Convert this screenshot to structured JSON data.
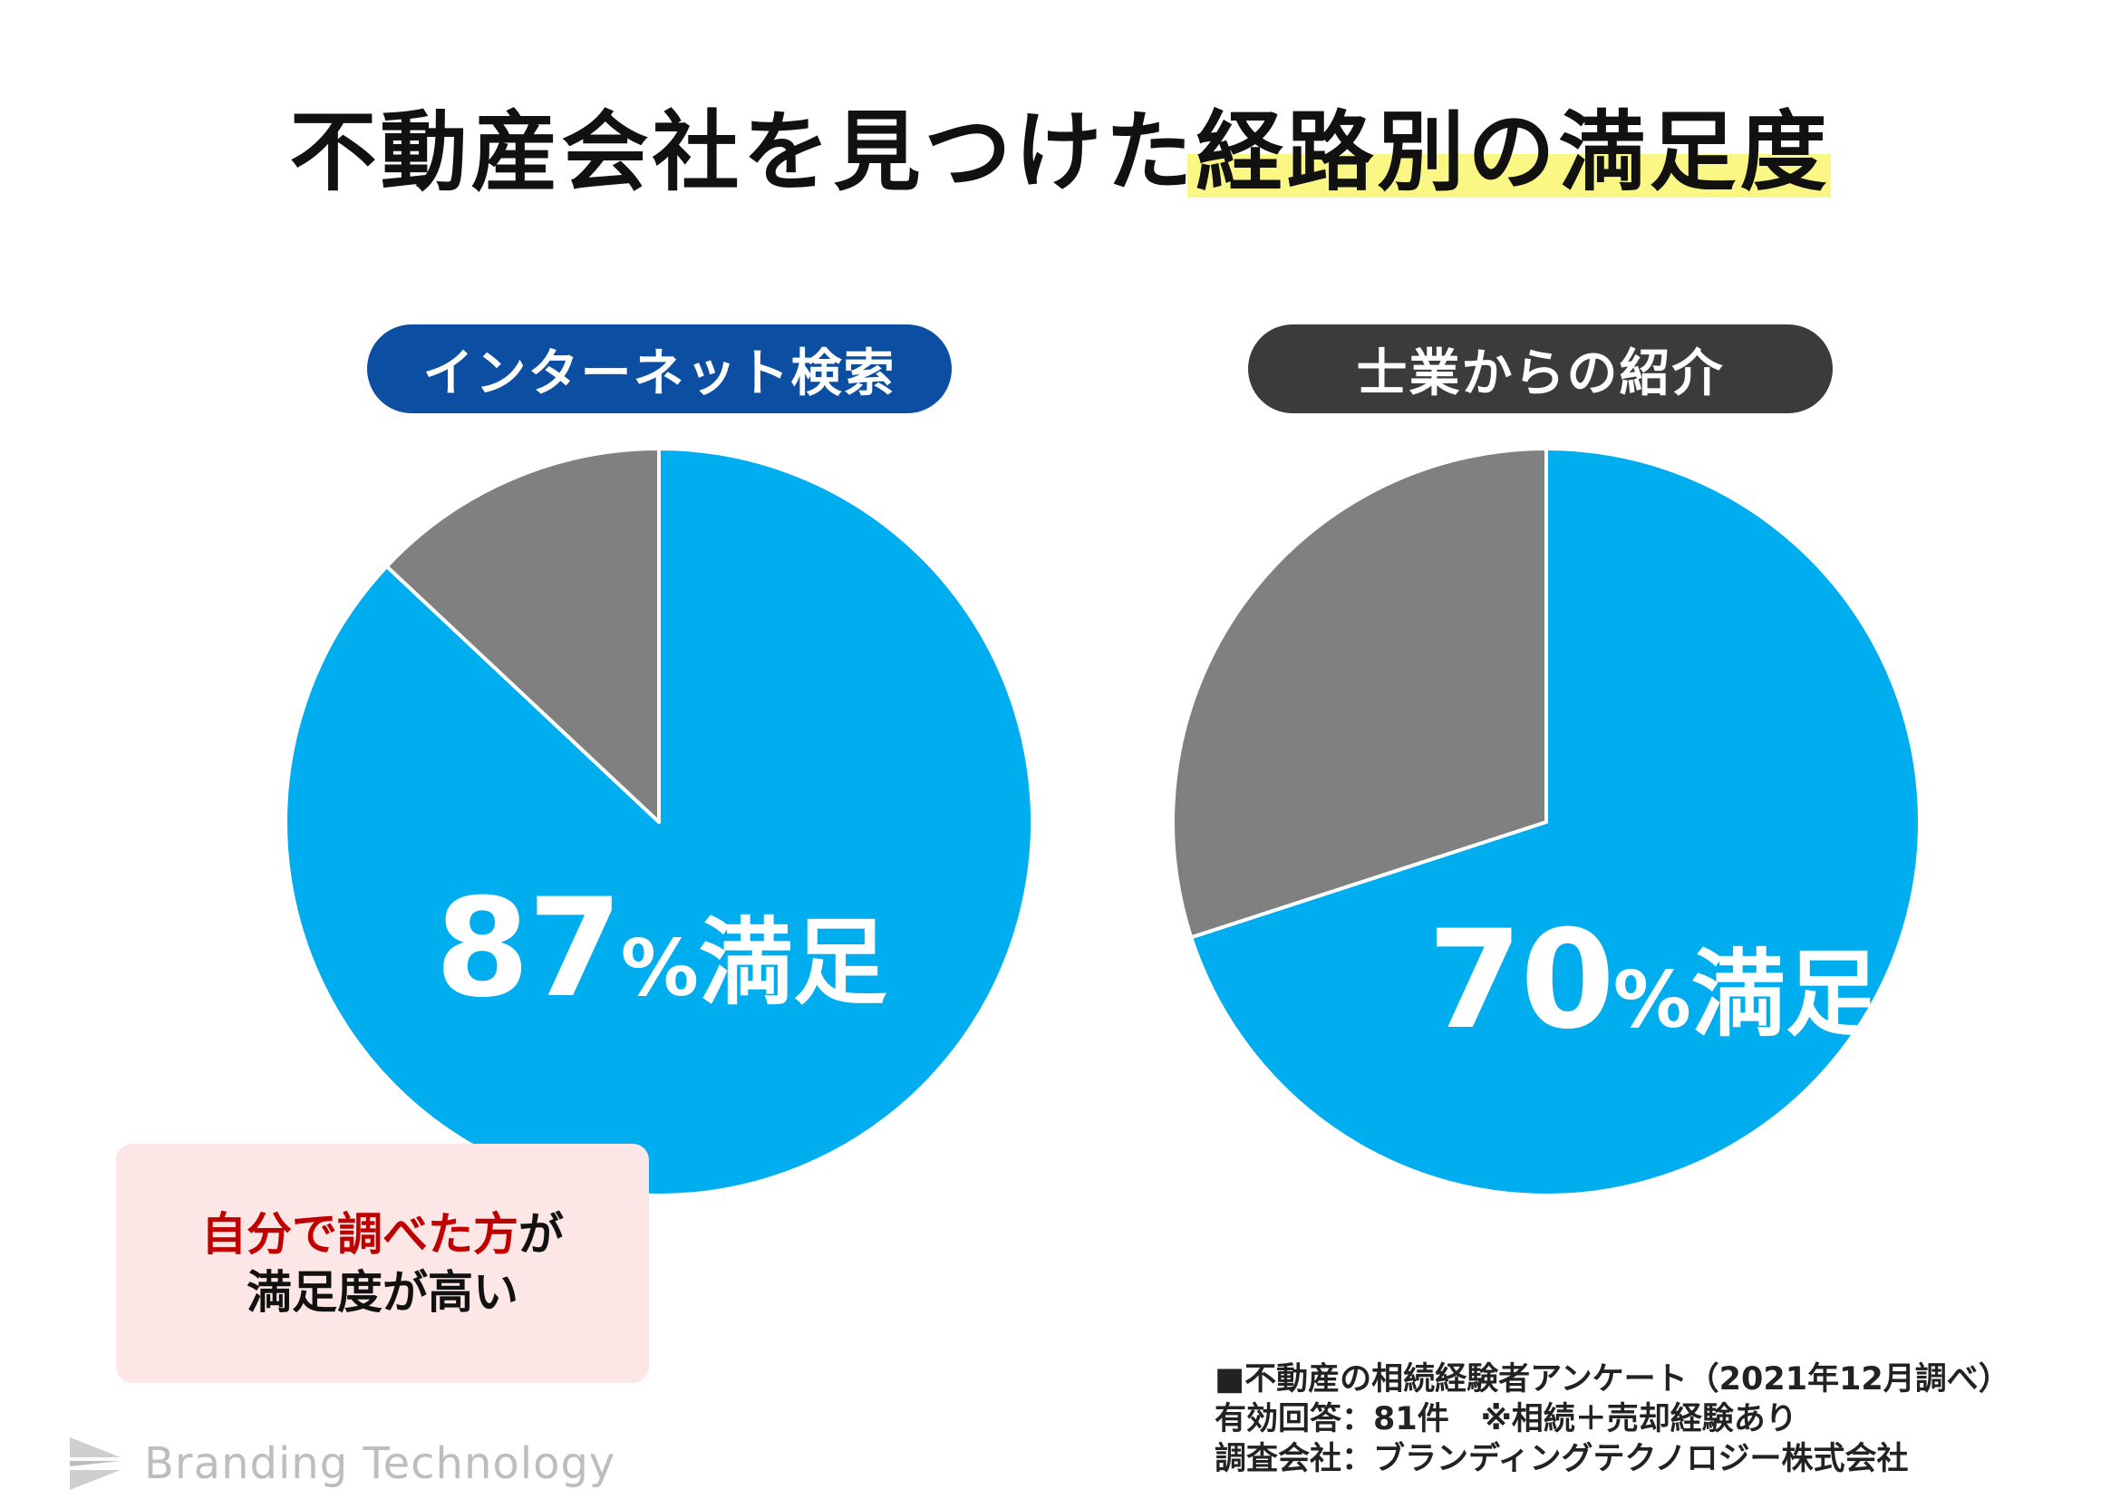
{
  "title": "不動産会社を見つけた経路別の満足度",
  "colors": {
    "satisfied": "#00aeef",
    "other": "#808080",
    "pill_left": "#0b4ea2",
    "pill_right": "#3b3b3b",
    "highlight": "#fbf784",
    "callout_bg": "#fde6e6",
    "callout_red": "#c00000"
  },
  "chart_data": [
    {
      "type": "pie",
      "title": "インターネット検索",
      "values": [
        87,
        13
      ],
      "slices": [
        "満足",
        ""
      ],
      "label": {
        "number": "87",
        "percent": "%",
        "word": "満足"
      }
    },
    {
      "type": "pie",
      "title": "士業からの紹介",
      "values": [
        70,
        30
      ],
      "slices": [
        "満足",
        ""
      ],
      "label": {
        "number": "70",
        "percent": "%",
        "word": "満足"
      }
    }
  ],
  "callout": {
    "line1_red": "自分で調べた方",
    "line1_rest": "が",
    "line2": "満足度が高い"
  },
  "footnote": {
    "line1": "■不動産の相続経験者アンケート（2021年12月調べ）",
    "line2": "有効回答：81件　※相続＋売却経験あり",
    "line3": "調査会社：ブランディングテクノロジー株式会社"
  },
  "logo": {
    "text": "Branding Technology",
    "icon": "branding-technology-logo-icon"
  }
}
